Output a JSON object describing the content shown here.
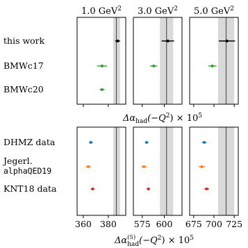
{
  "chart_data": [
    {
      "type": "scatter",
      "title": "",
      "panels": [
        {
          "q2_label": "1.0 GeV",
          "q2_power": "2",
          "band_center": 386.5,
          "band_low": 384.0,
          "band_high": 389.5,
          "xlim": [
            355,
            394
          ],
          "points": [
            {
              "label": "this work",
              "value": 387.5,
              "err": 2.0,
              "color": "#000000"
            },
            {
              "label": "BMWc17",
              "value": 375.0,
              "err": 4.0,
              "color": "#2ca02c"
            },
            {
              "label": "BMWc20",
              "value": 375.0,
              "err": 2.0,
              "color": "#2ca02c"
            }
          ]
        },
        {
          "q2_label": "3.0 GeV",
          "q2_power": "2",
          "band_center": 602.5,
          "band_low": 595.0,
          "band_high": 610.0,
          "xlim": [
            565,
            620
          ],
          "points": [
            {
              "label": "this work",
              "value": 604.0,
              "err": 7.0,
              "color": "#000000"
            },
            {
              "label": "BMWc17",
              "value": 588.0,
              "err": 4.0,
              "color": "#2ca02c"
            }
          ]
        },
        {
          "q2_label": "5.0 GeV",
          "q2_power": "2",
          "band_center": 715.0,
          "band_low": 705.0,
          "band_high": 725.0,
          "xlim": [
            670,
            730
          ],
          "points": [
            {
              "label": "this work",
              "value": 716.0,
              "err": 10.0,
              "color": "#000000"
            },
            {
              "label": "BMWc17",
              "value": 698.0,
              "err": 5.0,
              "color": "#2ca02c"
            }
          ]
        }
      ],
      "xlabel": {
        "main": "Δα",
        "sub": "had",
        "rest": "(−Q",
        "sup": "2",
        "tail": ") × 10",
        "exp": "5"
      },
      "row_labels": [
        "this work",
        "BMWc17",
        "BMWc20"
      ]
    },
    {
      "type": "scatter",
      "title": "",
      "panels": [
        {
          "band_center": 386.5,
          "band_low": 384.0,
          "band_high": 389.5,
          "xlim": [
            355,
            394
          ],
          "ticks": [
            360,
            380
          ],
          "points": [
            {
              "label": "DHMZ data",
              "value": 366.0,
              "err": 1.5,
              "color": "#1f77b4"
            },
            {
              "label": "Jegerl. alphaQED19",
              "value": 364.0,
              "err": 2.0,
              "color": "#ff7f0e"
            },
            {
              "label": "KNT18 data",
              "value": 367.5,
              "err": 1.5,
              "color": "#d62728"
            }
          ]
        },
        {
          "band_center": 602.5,
          "band_low": 595.0,
          "band_high": 610.0,
          "xlim": [
            565,
            620
          ],
          "ticks": [
            575,
            600
          ],
          "points": [
            {
              "label": "DHMZ data",
              "value": 580.0,
              "err": 2.0,
              "color": "#1f77b4"
            },
            {
              "label": "Jegerl. alphaQED19",
              "value": 577.0,
              "err": 3.0,
              "color": "#ff7f0e"
            },
            {
              "label": "KNT18 data",
              "value": 582.0,
              "err": 2.0,
              "color": "#d62728"
            }
          ]
        },
        {
          "band_center": 715.0,
          "band_low": 705.0,
          "band_high": 725.0,
          "xlim": [
            670,
            730
          ],
          "ticks": [
            675,
            700,
            725
          ],
          "points": [
            {
              "label": "DHMZ data",
              "value": 688.0,
              "err": 3.0,
              "color": "#1f77b4"
            },
            {
              "label": "Jegerl. alphaQED19",
              "value": 685.0,
              "err": 4.0,
              "color": "#ff7f0e"
            },
            {
              "label": "KNT18 data",
              "value": 691.0,
              "err": 3.0,
              "color": "#d62728"
            }
          ]
        }
      ],
      "xlabel": {
        "main": "Δα",
        "sub": "had",
        "sup_left": "(5)",
        "rest": "(−Q",
        "sup": "2",
        "tail": ") × 10",
        "exp": "5"
      },
      "row_labels": [
        "DHMZ data",
        "Jegerl.",
        "alphaQED19",
        "KNT18 data"
      ]
    }
  ]
}
